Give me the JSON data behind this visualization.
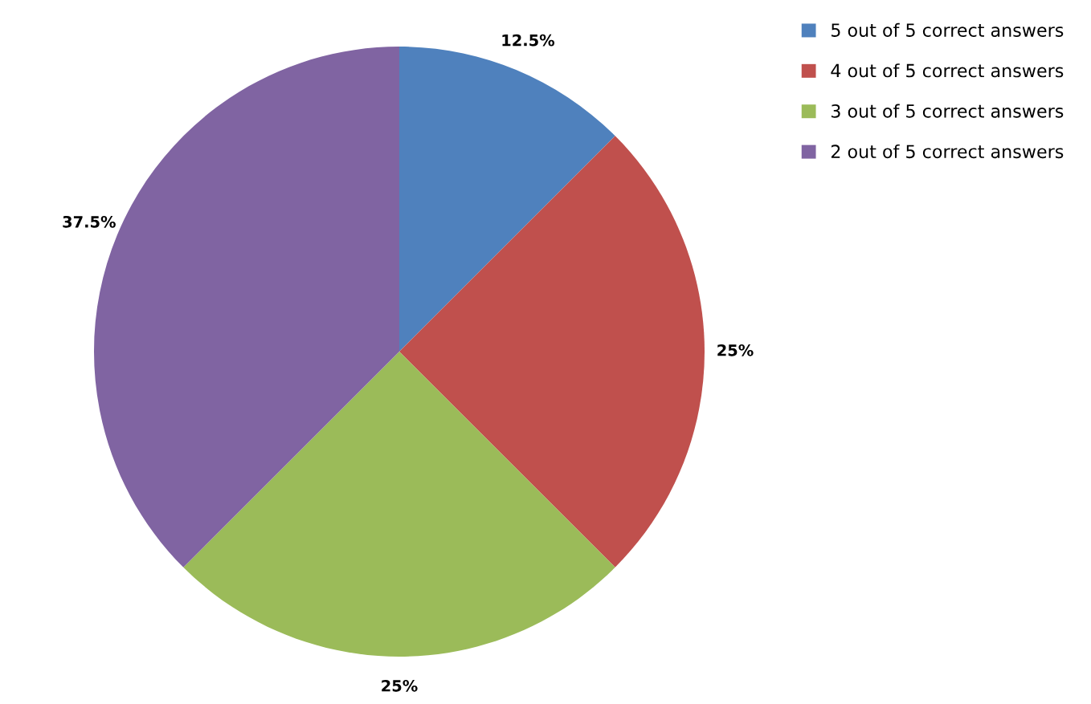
{
  "chart_data": {
    "type": "pie",
    "categories": [
      "5 out of 5 correct answers",
      "4 out of 5 correct answers",
      "3 out of 5 correct answers",
      "2 out of 5 correct answers"
    ],
    "values": [
      12.5,
      25,
      25,
      37.5
    ],
    "value_labels": [
      "12.5%",
      "25%",
      "25%",
      "37.5%"
    ],
    "colors": [
      "#4f81bd",
      "#c0504d",
      "#9bbb59",
      "#8064a2"
    ],
    "legend": "top right"
  }
}
